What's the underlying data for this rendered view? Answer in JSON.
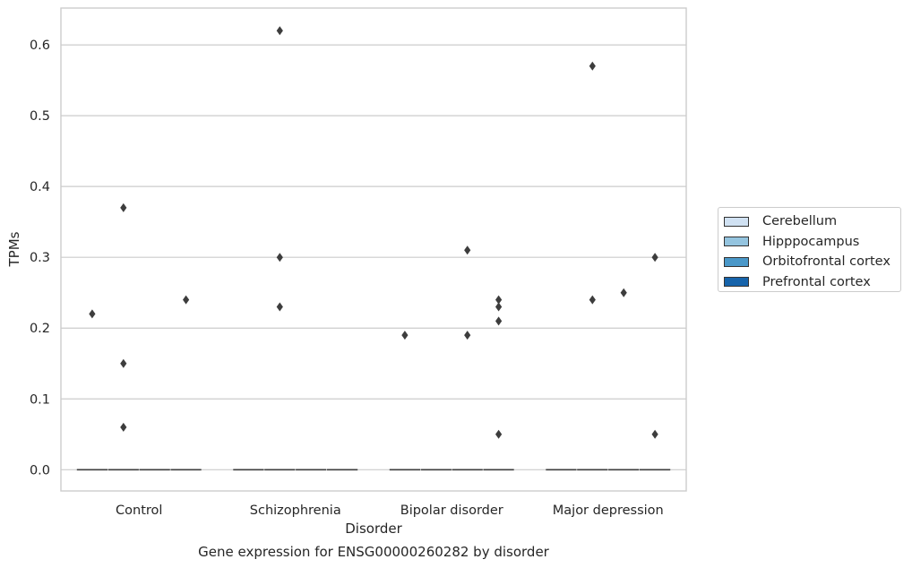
{
  "chart_data": {
    "type": "box",
    "categories": [
      "Control",
      "Schizophrenia",
      "Bipolar disorder",
      "Major depression"
    ],
    "hue_levels": [
      "Cerebellum",
      "Hipppocampus",
      "Orbitofrontal cortex",
      "Prefrontal cortex"
    ],
    "hue_colors": [
      "#d0e1f2",
      "#94c4df",
      "#4a98c9",
      "#1764ab"
    ],
    "xlabel": "Disorder",
    "ylabel": "TPMs",
    "caption": "Gene expression for ENSG00000260282 by disorder",
    "ylim": [
      -0.03,
      0.652
    ],
    "yticks": [
      0.0,
      0.1,
      0.2,
      0.3,
      0.4,
      0.5,
      0.6
    ],
    "ytick_labels": [
      "0.0",
      "0.1",
      "0.2",
      "0.3",
      "0.4",
      "0.5",
      "0.6"
    ],
    "grid": "horizontal",
    "legend_position": "right",
    "series": [
      {
        "name": "Cerebellum",
        "medians": [
          0,
          0,
          0,
          0
        ],
        "outliers": [
          [
            0.22
          ],
          [],
          [
            0.19
          ],
          []
        ]
      },
      {
        "name": "Hipppocampus",
        "medians": [
          0,
          0,
          0,
          0
        ],
        "outliers": [
          [
            0.37,
            0.15,
            0.06
          ],
          [
            0.62,
            0.3,
            0.23
          ],
          [],
          [
            0.57,
            0.24
          ]
        ]
      },
      {
        "name": "Orbitofrontal cortex",
        "medians": [
          0,
          0,
          0,
          0
        ],
        "outliers": [
          [],
          [],
          [
            0.31,
            0.19
          ],
          [
            0.25
          ]
        ]
      },
      {
        "name": "Prefrontal cortex",
        "medians": [
          0,
          0,
          0,
          0
        ],
        "outliers": [
          [
            0.24
          ],
          [],
          [
            0.24,
            0.23,
            0.21,
            0.05
          ],
          [
            0.3,
            0.05
          ]
        ]
      }
    ]
  }
}
